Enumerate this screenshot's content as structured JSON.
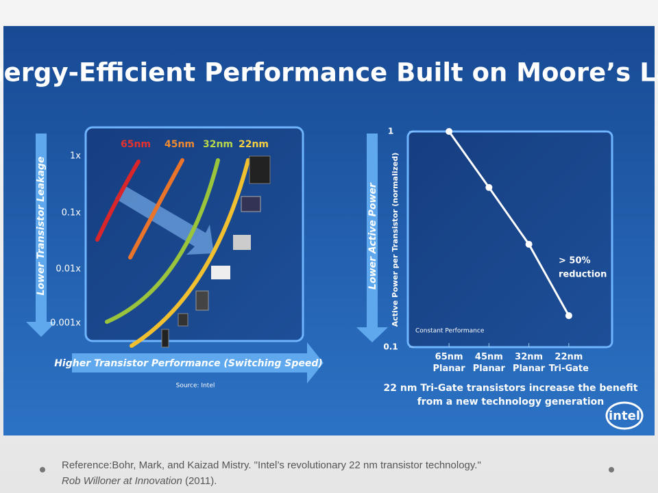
{
  "title": "Energy-Efficient Performance Built on Moore’s Law",
  "left_panel": {
    "curve_labels": [
      "65nm",
      "45nm",
      "32nm",
      "22nm"
    ],
    "y_labels": [
      "1x",
      "0.1x",
      "0.01x",
      "0.001x"
    ],
    "y_axis": "Lower Transistor Leakage",
    "x_axis": "Higher Transistor Performance (Switching Speed)",
    "source": "Source: Intel"
  },
  "chart_data": {
    "type": "line",
    "log_y": true,
    "color": "#ffffff",
    "categories": [
      "65nm\nPlanar",
      "45nm\nPlanar",
      "32nm\nPlanar",
      "22nm\nTri-Gate"
    ],
    "values": [
      1,
      0.55,
      0.3,
      0.14
    ],
    "ylim": [
      0.1,
      1
    ],
    "yticks": [
      0.1,
      1
    ],
    "ylabel": "Active Power per Transistor (normalized)",
    "arrow_label": "Lower Active Power",
    "annotation": [
      "> 50%",
      "reduction"
    ],
    "note": "Constant Performance",
    "caption": [
      "22 nm Tri-Gate transistors increase the benefit",
      "from a new technology generation"
    ]
  },
  "brand": "intel",
  "reference": {
    "text": "Reference:Bohr, Mark, and Kaizad Mistry. \"Intel’s revolutionary 22 nm transistor technology.\"",
    "venue": "Rob Willoner at Innovation",
    "year": " (2011)."
  }
}
